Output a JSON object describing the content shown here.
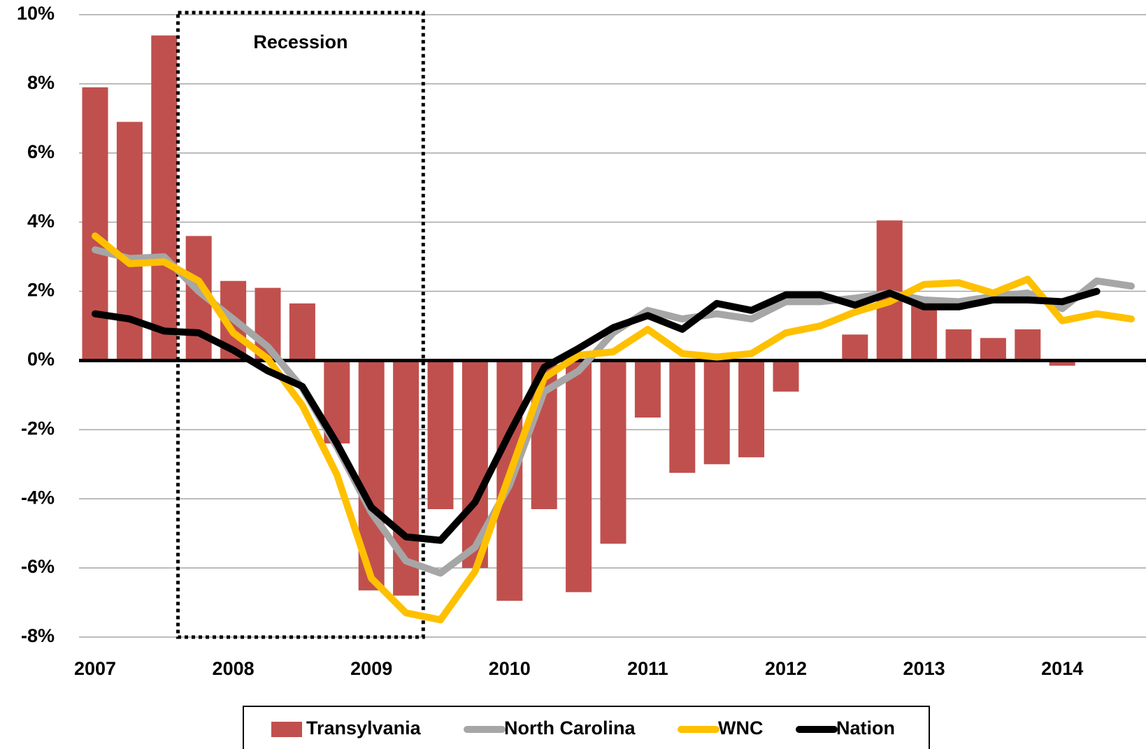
{
  "chart_data": {
    "type": "bar",
    "categories": [
      "2007",
      null,
      null,
      null,
      "2008",
      null,
      null,
      null,
      "2009",
      null,
      null,
      null,
      "2010",
      null,
      null,
      null,
      "2011",
      null,
      null,
      null,
      "2012",
      null,
      null,
      null,
      "2013",
      null,
      null,
      null,
      "2014",
      null,
      null
    ],
    "series": [
      {
        "name": "Transylvania",
        "type": "bar",
        "color": "#c0504d",
        "values": [
          7.9,
          6.9,
          9.4,
          3.6,
          2.3,
          2.1,
          1.65,
          -2.4,
          -6.65,
          -6.8,
          -4.3,
          -6.0,
          -6.95,
          -4.3,
          -6.7,
          -5.3,
          -1.65,
          -3.25,
          -3.0,
          -2.8,
          -0.9,
          null,
          0.75,
          4.05,
          1.6,
          0.9,
          0.65,
          0.9,
          -0.15,
          null,
          null
        ]
      },
      {
        "name": "North Carolina",
        "type": "line",
        "color": "#a6a6a6",
        "values": [
          3.2,
          2.95,
          3.0,
          2.0,
          1.2,
          0.4,
          -0.8,
          -2.5,
          -4.4,
          -5.8,
          -6.15,
          -5.4,
          -3.6,
          -0.9,
          -0.3,
          0.8,
          1.45,
          1.2,
          1.35,
          1.2,
          1.7,
          1.7,
          1.8,
          1.95,
          1.75,
          1.7,
          1.85,
          1.95,
          1.5,
          2.3,
          2.15
        ]
      },
      {
        "name": "WNC",
        "type": "line",
        "color": "#ffc000",
        "values": [
          3.6,
          2.8,
          2.85,
          2.3,
          0.8,
          0.05,
          -1.3,
          -3.3,
          -6.3,
          -7.3,
          -7.5,
          -6.1,
          -3.3,
          -0.5,
          0.15,
          0.25,
          0.9,
          0.2,
          0.1,
          0.2,
          0.8,
          1.0,
          1.4,
          1.7,
          2.2,
          2.25,
          1.95,
          2.35,
          1.15,
          1.35,
          1.2
        ]
      },
      {
        "name": "Nation",
        "type": "line",
        "color": "#000000",
        "values": [
          1.35,
          1.2,
          0.85,
          0.8,
          0.3,
          -0.3,
          -0.75,
          -2.4,
          -4.25,
          -5.1,
          -5.2,
          -4.1,
          -2.1,
          -0.2,
          0.35,
          0.95,
          1.3,
          0.9,
          1.65,
          1.45,
          1.9,
          1.9,
          1.6,
          1.95,
          1.55,
          1.55,
          1.75,
          1.75,
          1.7,
          2.0,
          null
        ]
      }
    ],
    "ylim": [
      -8,
      10
    ],
    "yticks": [
      {
        "value": -8,
        "label": "-8%"
      },
      {
        "value": -6,
        "label": "-6%"
      },
      {
        "value": -4,
        "label": "-4%"
      },
      {
        "value": -2,
        "label": "-2%"
      },
      {
        "value": 0,
        "label": "0%"
      },
      {
        "value": 2,
        "label": "2%"
      },
      {
        "value": 4,
        "label": "4%"
      },
      {
        "value": 6,
        "label": "6%"
      },
      {
        "value": 8,
        "label": "8%"
      },
      {
        "value": 10,
        "label": "10%"
      }
    ],
    "grid": true,
    "recession": {
      "label": "Recession",
      "x": [
        2.4,
        9.5
      ]
    },
    "legend": "bottom"
  }
}
